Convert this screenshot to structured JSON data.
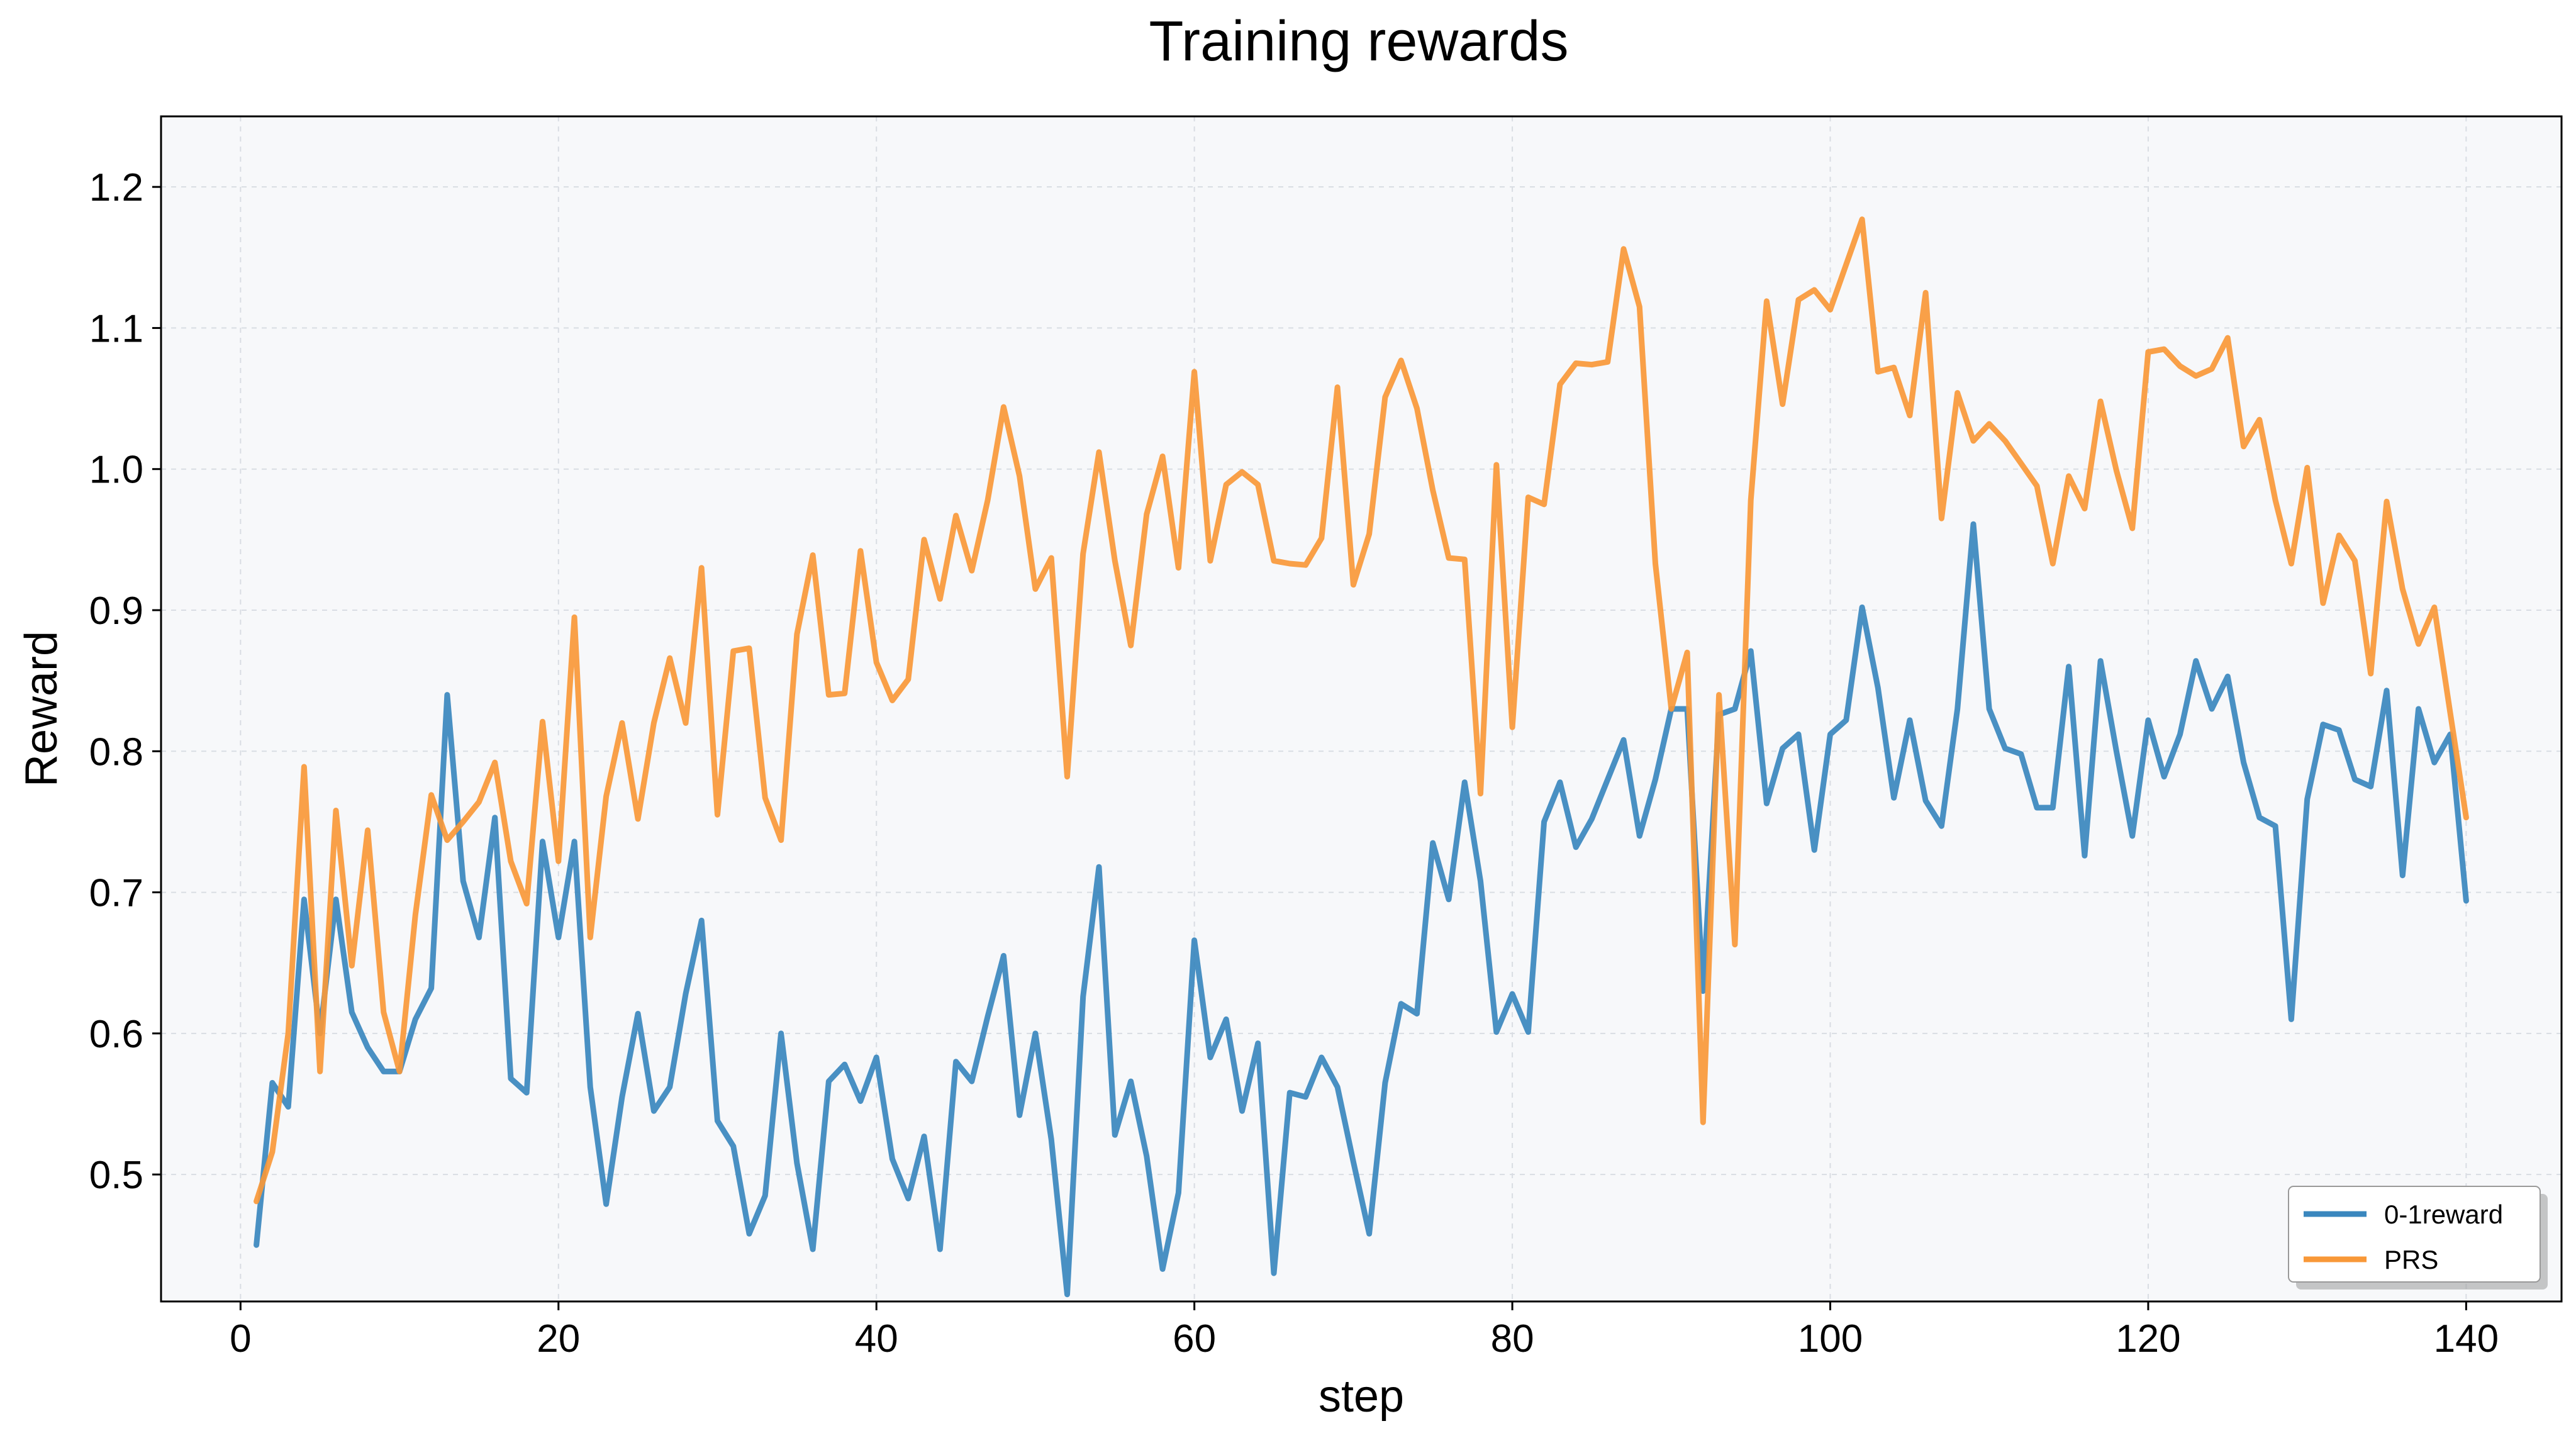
{
  "chart_data": {
    "type": "line",
    "title": "Training rewards",
    "xlabel": "step",
    "ylabel": "Reward",
    "xlim": [
      -5,
      146
    ],
    "ylim": [
      0.41,
      1.25
    ],
    "xticks": [
      0,
      20,
      40,
      60,
      80,
      100,
      120,
      140
    ],
    "yticks": [
      0.5,
      0.6,
      0.7,
      0.8,
      0.9,
      1.0,
      1.1,
      1.2
    ],
    "ytick_labels": [
      "0.5",
      "0.6",
      "0.7",
      "0.8",
      "0.9",
      "1.0",
      "1.1",
      "1.2"
    ],
    "grid": true,
    "legend_position": "bottom-right",
    "colors": {
      "background": "#f7f8fa",
      "axes": "#000000"
    },
    "series": [
      {
        "name": "0-1reward",
        "color": "#3a87be",
        "x": [
          1,
          2,
          3,
          4,
          5,
          6,
          7,
          8,
          9,
          10,
          11,
          12,
          13,
          14,
          15,
          16,
          17,
          18,
          19,
          20,
          21,
          22,
          23,
          24,
          25,
          26,
          27,
          28,
          29,
          30,
          31,
          32,
          33,
          34,
          35,
          36,
          37,
          38,
          39,
          40,
          41,
          42,
          43,
          44,
          45,
          46,
          47,
          48,
          49,
          50,
          51,
          52,
          53,
          54,
          55,
          56,
          57,
          58,
          59,
          60,
          61,
          62,
          63,
          64,
          65,
          66,
          67,
          68,
          69,
          70,
          71,
          72,
          73,
          74,
          75,
          76,
          77,
          78,
          79,
          80,
          81,
          82,
          83,
          84,
          85,
          86,
          87,
          88,
          89,
          90,
          91,
          92,
          93,
          94,
          95,
          96,
          97,
          98,
          99,
          100,
          101,
          102,
          103,
          104,
          105,
          106,
          107,
          108,
          109,
          110,
          111,
          112,
          113,
          114,
          115,
          116,
          117,
          118,
          119,
          120,
          121,
          122,
          123,
          124,
          125,
          126,
          127,
          128,
          129,
          130,
          131,
          132,
          133,
          134,
          135,
          136,
          137,
          138,
          139,
          140
        ],
        "y": [
          0.45,
          0.565,
          0.548,
          0.695,
          0.6,
          0.695,
          0.615,
          0.59,
          0.573,
          0.573,
          0.61,
          0.632,
          0.84,
          0.708,
          0.668,
          0.753,
          0.568,
          0.558,
          0.736,
          0.668,
          0.736,
          0.562,
          0.479,
          0.555,
          0.614,
          0.545,
          0.562,
          0.628,
          0.68,
          0.538,
          0.52,
          0.458,
          0.485,
          0.6,
          0.508,
          0.447,
          0.566,
          0.578,
          0.552,
          0.583,
          0.511,
          0.483,
          0.527,
          0.447,
          0.58,
          0.566,
          0.612,
          0.655,
          0.542,
          0.6,
          0.525,
          0.415,
          0.626,
          0.718,
          0.528,
          0.566,
          0.513,
          0.433,
          0.487,
          0.666,
          0.583,
          0.61,
          0.545,
          0.593,
          0.43,
          0.558,
          0.555,
          0.583,
          0.562,
          0.509,
          0.458,
          0.565,
          0.621,
          0.614,
          0.735,
          0.695,
          0.778,
          0.708,
          0.601,
          0.628,
          0.601,
          0.75,
          0.778,
          0.732,
          0.752,
          0.78,
          0.808,
          0.74,
          0.78,
          0.83,
          0.83,
          0.63,
          0.826,
          0.83,
          0.871,
          0.763,
          0.802,
          0.812,
          0.73,
          0.812,
          0.822,
          0.902,
          0.845,
          0.767,
          0.822,
          0.765,
          0.747,
          0.83,
          0.961,
          0.83,
          0.802,
          0.798,
          0.76,
          0.76,
          0.86,
          0.726,
          0.864,
          0.8,
          0.74,
          0.822,
          0.782,
          0.812,
          0.864,
          0.83,
          0.853,
          0.792,
          0.753,
          0.747,
          0.61,
          0.766,
          0.819,
          0.815,
          0.78,
          0.775,
          0.843,
          0.712,
          0.83,
          0.792,
          0.812,
          0.694
        ]
      },
      {
        "name": "PRS",
        "color": "#f89838",
        "x": [
          1,
          2,
          3,
          4,
          5,
          6,
          7,
          8,
          9,
          10,
          11,
          12,
          13,
          14,
          15,
          16,
          17,
          18,
          19,
          20,
          21,
          22,
          23,
          24,
          25,
          26,
          27,
          28,
          29,
          30,
          31,
          32,
          33,
          34,
          35,
          36,
          37,
          38,
          39,
          40,
          41,
          42,
          43,
          44,
          45,
          46,
          47,
          48,
          49,
          50,
          51,
          52,
          53,
          54,
          55,
          56,
          57,
          58,
          59,
          60,
          61,
          62,
          63,
          64,
          65,
          66,
          67,
          68,
          69,
          70,
          71,
          72,
          73,
          74,
          75,
          76,
          77,
          78,
          79,
          80,
          81,
          82,
          83,
          84,
          85,
          86,
          87,
          88,
          89,
          90,
          91,
          92,
          93,
          94,
          95,
          96,
          97,
          98,
          99,
          100,
          101,
          102,
          103,
          104,
          105,
          106,
          107,
          108,
          109,
          110,
          111,
          112,
          113,
          114,
          115,
          116,
          117,
          118,
          119,
          120,
          121,
          122,
          123,
          124,
          125,
          126,
          127,
          128,
          129,
          130,
          131,
          132,
          133,
          134,
          135,
          136,
          137,
          138,
          139,
          140
        ],
        "y": [
          0.481,
          0.516,
          0.6,
          0.789,
          0.573,
          0.758,
          0.648,
          0.744,
          0.615,
          0.573,
          0.684,
          0.769,
          0.737,
          0.75,
          0.764,
          0.792,
          0.722,
          0.692,
          0.821,
          0.722,
          0.895,
          0.668,
          0.768,
          0.82,
          0.752,
          0.82,
          0.866,
          0.82,
          0.93,
          0.755,
          0.871,
          0.873,
          0.767,
          0.737,
          0.883,
          0.939,
          0.84,
          0.841,
          0.942,
          0.863,
          0.836,
          0.851,
          0.95,
          0.908,
          0.967,
          0.928,
          0.978,
          1.044,
          0.995,
          0.915,
          0.937,
          0.782,
          0.94,
          1.012,
          0.935,
          0.875,
          0.968,
          1.009,
          0.93,
          1.069,
          0.935,
          0.989,
          0.998,
          0.989,
          0.935,
          0.933,
          0.932,
          0.951,
          1.058,
          0.918,
          0.954,
          1.051,
          1.077,
          1.043,
          0.985,
          0.937,
          0.936,
          0.77,
          1.003,
          0.817,
          0.98,
          0.975,
          1.06,
          1.075,
          1.074,
          1.076,
          1.156,
          1.115,
          0.933,
          0.83,
          0.87,
          0.537,
          0.84,
          0.663,
          0.978,
          1.119,
          1.046,
          1.12,
          1.127,
          1.113,
          1.145,
          1.177,
          1.069,
          1.072,
          1.038,
          1.125,
          0.965,
          1.054,
          1.02,
          1.032,
          1.02,
          1.004,
          0.988,
          0.933,
          0.995,
          0.972,
          1.048,
          0.999,
          0.958,
          1.083,
          1.085,
          1.073,
          1.066,
          1.071,
          1.093,
          1.016,
          1.035,
          0.978,
          0.933,
          1.001,
          0.905,
          0.953,
          0.935,
          0.855,
          0.977,
          0.915,
          0.876,
          0.902,
          0.827,
          0.753
        ]
      }
    ]
  }
}
